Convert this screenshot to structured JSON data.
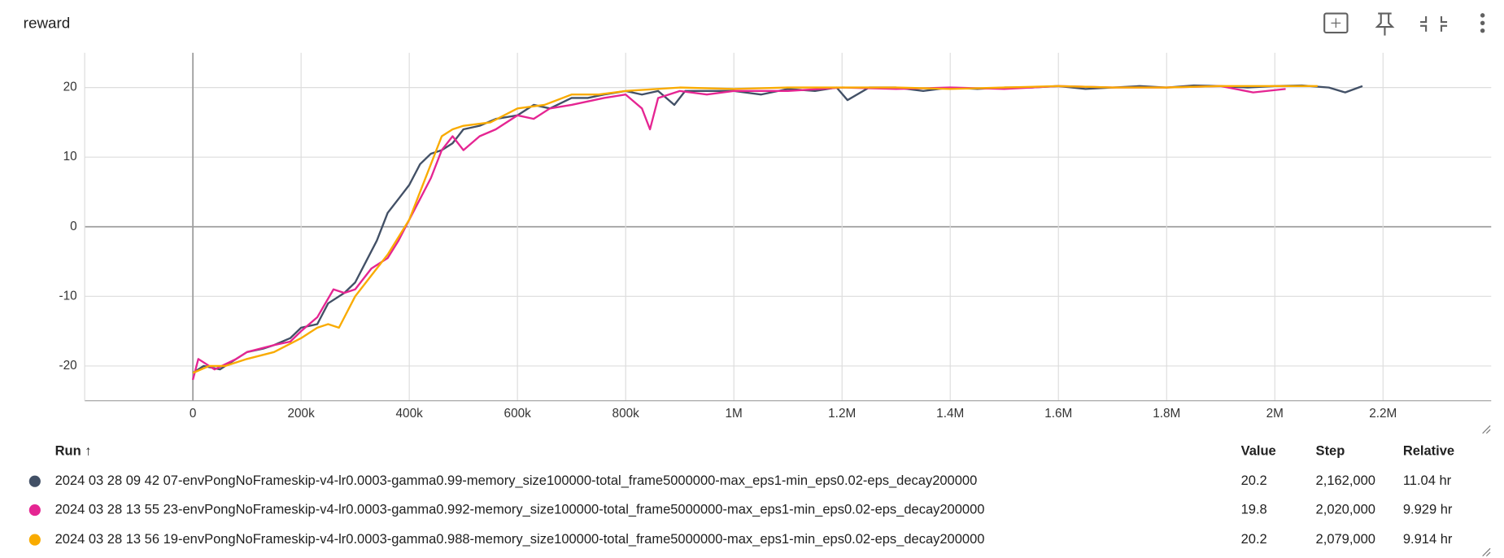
{
  "chart_data": {
    "type": "line",
    "title": "reward",
    "xlim": [
      -200000,
      2400000
    ],
    "ylim": [
      -25,
      25
    ],
    "xticks": [
      0,
      {
        "value": 200000,
        "label": "200k"
      },
      {
        "value": 400000,
        "label": "400k"
      },
      {
        "value": 600000,
        "label": "600k"
      },
      {
        "value": 800000,
        "label": "800k"
      },
      {
        "value": 1000000,
        "label": "1M"
      },
      {
        "value": 1200000,
        "label": "1.2M"
      },
      {
        "value": 1400000,
        "label": "1.4M"
      },
      {
        "value": 1600000,
        "label": "1.6M"
      },
      {
        "value": 1800000,
        "label": "1.8M"
      },
      {
        "value": 2000000,
        "label": "2M"
      },
      {
        "value": 2200000,
        "label": "2.2M"
      }
    ],
    "yticks": [
      -20,
      -10,
      0,
      10,
      20
    ],
    "grid": true,
    "series": [
      {
        "name": "2024 03 28 09 42 07-envPongNoFrameskip-v4-lr0.0003-gamma0.99-memory_size100000-total_frame5000000-max_eps1-min_eps0.02-eps_decay200000",
        "color": "#425066",
        "x": [
          0,
          20000,
          50000,
          80000,
          100000,
          130000,
          150000,
          180000,
          200000,
          230000,
          250000,
          280000,
          300000,
          320000,
          340000,
          360000,
          380000,
          400000,
          420000,
          440000,
          460000,
          480000,
          500000,
          530000,
          560000,
          600000,
          630000,
          660000,
          700000,
          730000,
          760000,
          800000,
          830000,
          860000,
          890000,
          910000,
          950000,
          1000000,
          1050000,
          1100000,
          1150000,
          1190000,
          1210000,
          1250000,
          1300000,
          1350000,
          1400000,
          1450000,
          1500000,
          1550000,
          1600000,
          1650000,
          1700000,
          1750000,
          1800000,
          1850000,
          1900000,
          1950000,
          2000000,
          2050000,
          2100000,
          2130000,
          2162000
        ],
        "values": [
          -21,
          -20,
          -20.5,
          -19,
          -18,
          -17.5,
          -17,
          -16,
          -14.5,
          -14,
          -11,
          -9.5,
          -8,
          -5,
          -2,
          2,
          4,
          6,
          9,
          10.5,
          11,
          12,
          14,
          14.5,
          15.5,
          16,
          17.5,
          17,
          18.5,
          18.5,
          19,
          19.5,
          19,
          19.5,
          17.5,
          19.5,
          19.5,
          19.5,
          19,
          19.8,
          19.5,
          20,
          18.2,
          20,
          20,
          19.5,
          20,
          19.8,
          20,
          20,
          20.2,
          19.8,
          20,
          20.2,
          20,
          20.3,
          20.2,
          20,
          20.2,
          20.3,
          20,
          19.3,
          20.2
        ]
      },
      {
        "name": "2024 03 28 13 55 23-envPongNoFrameskip-v4-lr0.0003-gamma0.992-memory_size100000-total_frame5000000-max_eps1-min_eps0.02-eps_decay200000",
        "color": "#e52592",
        "x": [
          0,
          10000,
          40000,
          80000,
          100000,
          150000,
          180000,
          200000,
          230000,
          260000,
          280000,
          300000,
          330000,
          360000,
          380000,
          400000,
          420000,
          440000,
          460000,
          480000,
          500000,
          530000,
          560000,
          600000,
          630000,
          660000,
          700000,
          730000,
          760000,
          800000,
          830000,
          845000,
          860000,
          900000,
          950000,
          1000000,
          1100000,
          1200000,
          1300000,
          1400000,
          1500000,
          1600000,
          1700000,
          1800000,
          1900000,
          1960000,
          2020000
        ],
        "values": [
          -22,
          -19,
          -20.5,
          -19,
          -18,
          -17,
          -16.5,
          -15,
          -13,
          -9,
          -9.5,
          -9,
          -6,
          -4.5,
          -2,
          1,
          4,
          7,
          11,
          13,
          11,
          13,
          14,
          16,
          15.5,
          17,
          17.5,
          18,
          18.5,
          19,
          17,
          14,
          18.5,
          19.5,
          19,
          19.5,
          19.5,
          20,
          19.8,
          20,
          19.8,
          20.2,
          20,
          20,
          20.2,
          19.3,
          19.8
        ]
      },
      {
        "name": "2024 03 28 13 56 19-envPongNoFrameskip-v4-lr0.0003-gamma0.988-memory_size100000-total_frame5000000-max_eps1-min_eps0.02-eps_decay200000",
        "color": "#f9ab00",
        "x": [
          0,
          30000,
          60000,
          100000,
          150000,
          200000,
          230000,
          250000,
          270000,
          300000,
          330000,
          360000,
          400000,
          420000,
          440000,
          460000,
          480000,
          500000,
          550000,
          600000,
          650000,
          700000,
          750000,
          800000,
          900000,
          1000000,
          1100000,
          1200000,
          1300000,
          1400000,
          1500000,
          1600000,
          1700000,
          1800000,
          1900000,
          2000000,
          2079000
        ],
        "values": [
          -21,
          -20,
          -20,
          -19,
          -18,
          -16,
          -14.5,
          -14,
          -14.5,
          -10,
          -7,
          -4,
          1,
          5,
          9,
          13,
          14,
          14.5,
          15,
          17,
          17.5,
          19,
          19,
          19.5,
          20,
          19.8,
          20,
          20,
          20,
          19.8,
          20,
          20.2,
          20,
          20,
          20.2,
          20.2,
          20.2
        ]
      }
    ]
  },
  "table": {
    "header": [
      "Run ↑",
      "Value",
      "Step",
      "Relative"
    ],
    "rows": [
      [
        20.2,
        "2,162,000",
        "11.04 hr"
      ],
      [
        19.8,
        "2,020,000",
        "9.929 hr"
      ],
      [
        20.2,
        "2,079,000",
        "9.914 hr"
      ]
    ]
  }
}
